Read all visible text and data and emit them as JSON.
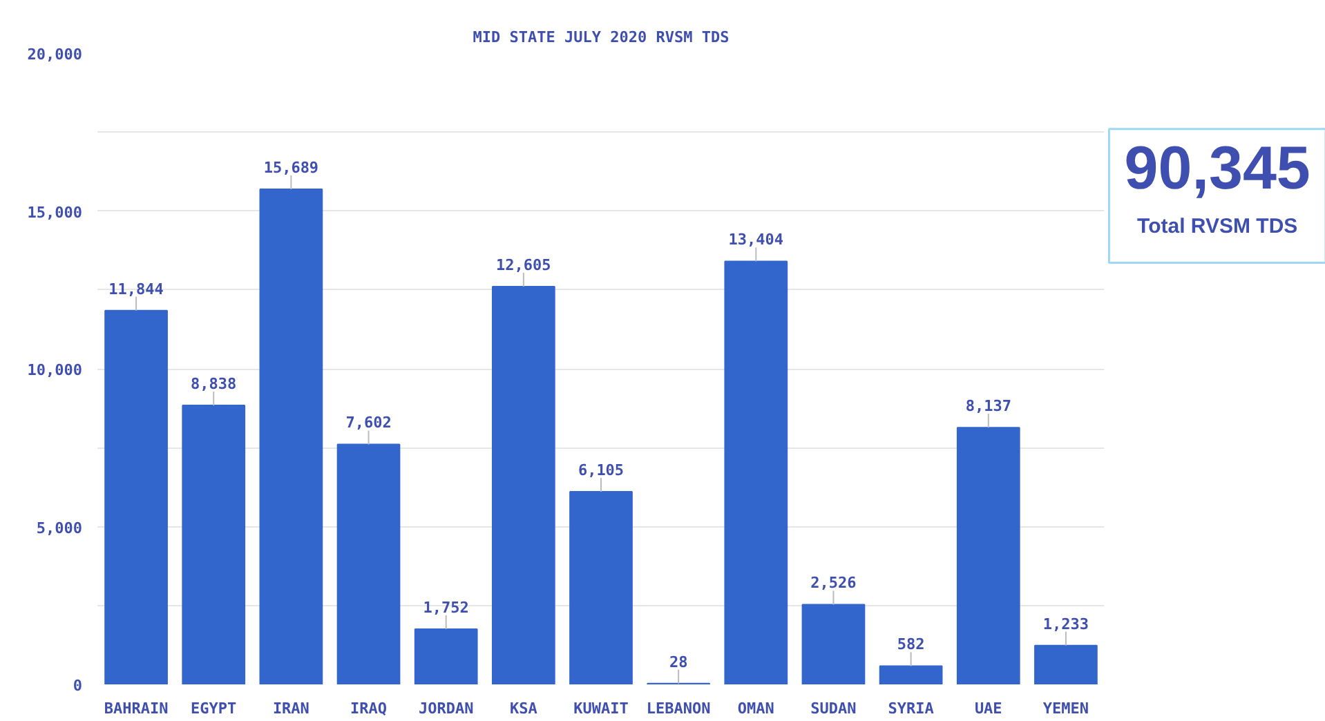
{
  "chart_data": [
    {
      "type": "bar",
      "title": "MID STATE JULY 2020 RVSM TDS",
      "categories": [
        "BAHRAIN",
        "EGYPT",
        "IRAN",
        "IRAQ",
        "JORDAN",
        "KSA",
        "KUWAIT",
        "LEBANON",
        "OMAN",
        "SUDAN",
        "SYRIA",
        "UAE",
        "YEMEN"
      ],
      "values": [
        11844,
        8838,
        15689,
        7602,
        1752,
        12605,
        6105,
        28,
        13404,
        2526,
        582,
        8137,
        1233
      ],
      "color": "#3366cc",
      "ylim": [
        0,
        20000
      ],
      "yticks": [
        0,
        {
          "value": 2500,
          "label": null
        },
        {
          "value": 5000,
          "label": "5,000"
        },
        {
          "value": 7500,
          "label": null
        },
        {
          "value": 10000,
          "label": "10,000"
        },
        {
          "value": 12500,
          "label": null
        },
        {
          "value": 15000,
          "label": "15,000"
        },
        {
          "value": 17500,
          "label": null
        },
        {
          "value": 20000,
          "label": "20,000"
        }
      ],
      "value_labels": [
        "11,844",
        "8,838",
        "15,689",
        "7,602",
        "1,752",
        "12,605",
        "6,105",
        "28",
        "13,404",
        "2,526",
        "582",
        "8,137",
        "1,233"
      ],
      "grid": "y"
    },
    {
      "type": "other",
      "title": "90,345",
      "annotations": [
        "Total RVSM TDS"
      ]
    }
  ]
}
